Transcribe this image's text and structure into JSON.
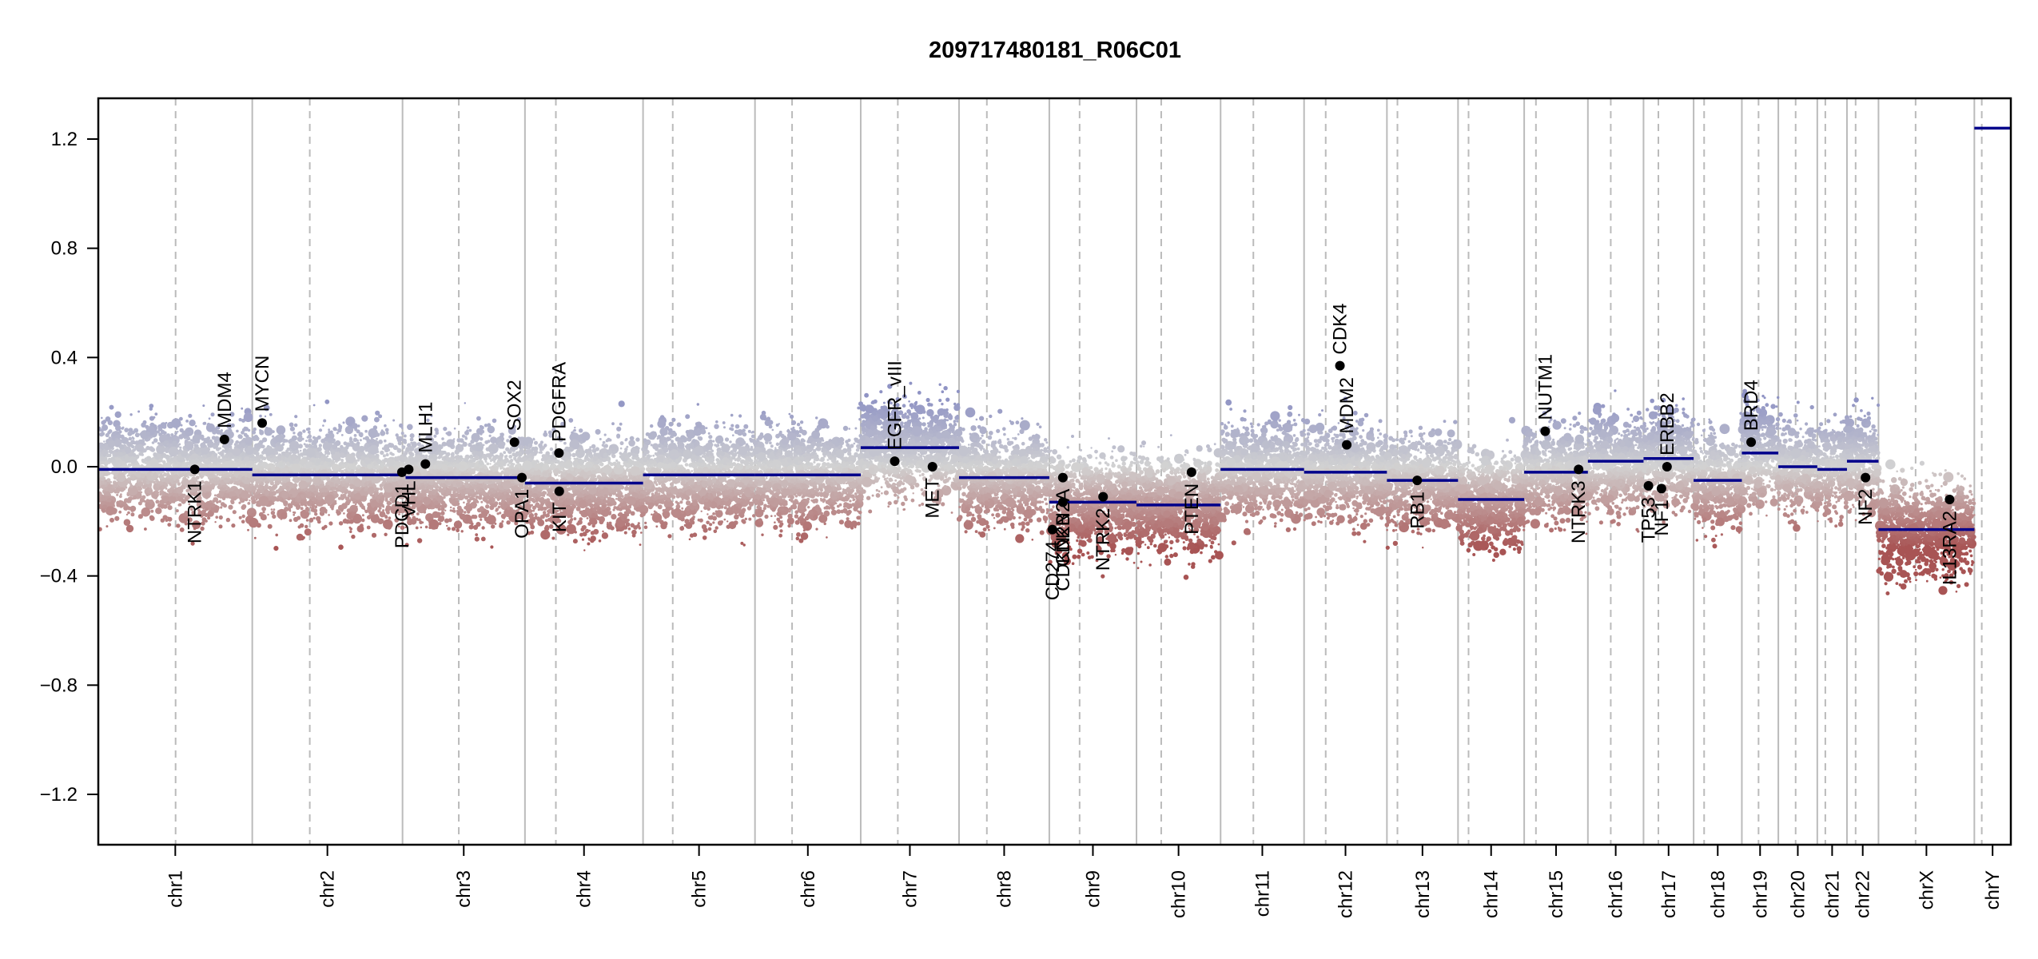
{
  "chart_data": {
    "type": "scatter",
    "title": "209717480181_R06C01",
    "xlabel": "",
    "ylabel": "",
    "ylim": [
      -1.35,
      1.35
    ],
    "yticks": [
      -1.2,
      -0.8,
      -0.4,
      0.0,
      0.4,
      0.8,
      1.2
    ],
    "ytick_labels": [
      "−1.2",
      "−0.8",
      "−0.4",
      "0.0",
      "0.4",
      "0.8",
      "1.2"
    ],
    "x_units": "Mb (cumulative genome position)",
    "grid": "chromosome boundaries (solid grey) and centromeres (dashed grey)",
    "colors": {
      "gain": "#8f93c4",
      "neutral": "#d0d0d0",
      "loss": "#b06060",
      "segment": "#00008b",
      "gene_point": "#000000",
      "boundary": "#bbbbbb",
      "centromere": "#bbbbbb"
    },
    "chromosomes": [
      {
        "name": "chr1",
        "length": 249,
        "centromere": 125
      },
      {
        "name": "chr2",
        "length": 243,
        "centromere": 93
      },
      {
        "name": "chr3",
        "length": 198,
        "centromere": 91
      },
      {
        "name": "chr4",
        "length": 191,
        "centromere": 50
      },
      {
        "name": "chr5",
        "length": 181,
        "centromere": 48
      },
      {
        "name": "chr6",
        "length": 171,
        "centromere": 60
      },
      {
        "name": "chr7",
        "length": 159,
        "centromere": 60
      },
      {
        "name": "chr8",
        "length": 146,
        "centromere": 45
      },
      {
        "name": "chr9",
        "length": 141,
        "centromere": 49
      },
      {
        "name": "chr10",
        "length": 136,
        "centromere": 40
      },
      {
        "name": "chr11",
        "length": 135,
        "centromere": 53
      },
      {
        "name": "chr12",
        "length": 134,
        "centromere": 35
      },
      {
        "name": "chr13",
        "length": 115,
        "centromere": 17
      },
      {
        "name": "chr14",
        "length": 107,
        "centromere": 17
      },
      {
        "name": "chr15",
        "length": 103,
        "centromere": 19
      },
      {
        "name": "chr16",
        "length": 90,
        "centromere": 37
      },
      {
        "name": "chr17",
        "length": 81,
        "centromere": 24
      },
      {
        "name": "chr18",
        "length": 78,
        "centromere": 17
      },
      {
        "name": "chr19",
        "length": 59,
        "centromere": 27
      },
      {
        "name": "chr20",
        "length": 63,
        "centromere": 28
      },
      {
        "name": "chr21",
        "length": 48,
        "centromere": 13
      },
      {
        "name": "chr22",
        "length": 51,
        "centromere": 14
      },
      {
        "name": "chrX",
        "length": 155,
        "centromere": 60
      },
      {
        "name": "chrY",
        "length": 59,
        "centromere": 12
      }
    ],
    "segments": [
      {
        "chr": "chr1",
        "start": 0,
        "end": 249,
        "value": -0.01
      },
      {
        "chr": "chr2",
        "start": 0,
        "end": 243,
        "value": -0.03
      },
      {
        "chr": "chr3",
        "start": 0,
        "end": 5,
        "value": -0.03
      },
      {
        "chr": "chr3",
        "start": 5,
        "end": 196,
        "value": -0.04
      },
      {
        "chr": "chr4",
        "start": 0,
        "end": 191,
        "value": -0.06
      },
      {
        "chr": "chr5",
        "start": 0,
        "end": 181,
        "value": -0.03
      },
      {
        "chr": "chr6",
        "start": 0,
        "end": 171,
        "value": -0.03
      },
      {
        "chr": "chr7",
        "start": 0,
        "end": 159,
        "value": 0.07
      },
      {
        "chr": "chr8",
        "start": 0,
        "end": 146,
        "value": -0.04
      },
      {
        "chr": "chr9",
        "start": 0,
        "end": 141,
        "value": -0.13
      },
      {
        "chr": "chr10",
        "start": 0,
        "end": 136,
        "value": -0.14
      },
      {
        "chr": "chr11",
        "start": 0,
        "end": 135,
        "value": -0.01
      },
      {
        "chr": "chr12",
        "start": 0,
        "end": 134,
        "value": -0.02
      },
      {
        "chr": "chr13",
        "start": 0,
        "end": 115,
        "value": -0.05
      },
      {
        "chr": "chr14",
        "start": 0,
        "end": 107,
        "value": -0.12
      },
      {
        "chr": "chr15",
        "start": 0,
        "end": 103,
        "value": -0.02
      },
      {
        "chr": "chr16",
        "start": 0,
        "end": 90,
        "value": 0.02
      },
      {
        "chr": "chr17",
        "start": 0,
        "end": 81,
        "value": 0.03
      },
      {
        "chr": "chr18",
        "start": 0,
        "end": 78,
        "value": -0.05
      },
      {
        "chr": "chr19",
        "start": 0,
        "end": 59,
        "value": 0.05
      },
      {
        "chr": "chr20",
        "start": 0,
        "end": 63,
        "value": 0.0
      },
      {
        "chr": "chr21",
        "start": 0,
        "end": 48,
        "value": -0.01
      },
      {
        "chr": "chr22",
        "start": 0,
        "end": 51,
        "value": 0.02
      },
      {
        "chr": "chrX",
        "start": 0,
        "end": 155,
        "value": -0.23
      },
      {
        "chr": "chrY",
        "start": 0,
        "end": 59,
        "value": 1.24
      }
    ],
    "genes": [
      {
        "name": "NTRK1",
        "chr": "chr1",
        "pos": 156,
        "value": -0.01,
        "label_side": "below"
      },
      {
        "name": "MDM4",
        "chr": "chr1",
        "pos": 204,
        "value": 0.1,
        "label_side": "above"
      },
      {
        "name": "MYCN",
        "chr": "chr2",
        "pos": 16,
        "value": 0.16,
        "label_side": "above"
      },
      {
        "name": "PDCD1",
        "chr": "chr2",
        "pos": 242,
        "value": -0.02,
        "label_side": "below"
      },
      {
        "name": "VHL",
        "chr": "chr3",
        "pos": 10,
        "value": -0.01,
        "label_side": "below"
      },
      {
        "name": "MLH1",
        "chr": "chr3",
        "pos": 37,
        "value": 0.01,
        "label_side": "above"
      },
      {
        "name": "SOX2",
        "chr": "chr3",
        "pos": 181,
        "value": 0.09,
        "label_side": "above"
      },
      {
        "name": "OPA1",
        "chr": "chr3",
        "pos": 193,
        "value": -0.04,
        "label_side": "below"
      },
      {
        "name": "PDGFRA",
        "chr": "chr4",
        "pos": 55,
        "value": 0.05,
        "label_side": "above"
      },
      {
        "name": "KIT",
        "chr": "chr4",
        "pos": 55.5,
        "value": -0.09,
        "label_side": "below"
      },
      {
        "name": "EGFR_vIII",
        "chr": "chr7",
        "pos": 55,
        "value": 0.02,
        "label_side": "above"
      },
      {
        "name": "MET",
        "chr": "chr7",
        "pos": 116,
        "value": 0.0,
        "label_side": "below"
      },
      {
        "name": "CD274",
        "chr": "chr9",
        "pos": 5,
        "value": -0.23,
        "label_side": "below"
      },
      {
        "name": "CDKN2A",
        "chr": "chr9",
        "pos": 21.9,
        "value": -0.04,
        "label_side": "below"
      },
      {
        "name": "CDKN2B",
        "chr": "chr9",
        "pos": 22,
        "value": -0.13,
        "label_side": "below"
      },
      {
        "name": "NTRK2",
        "chr": "chr9",
        "pos": 87,
        "value": -0.11,
        "label_side": "below"
      },
      {
        "name": "PTEN",
        "chr": "chr10",
        "pos": 89,
        "value": -0.02,
        "label_side": "below"
      },
      {
        "name": "CDK4",
        "chr": "chr12",
        "pos": 58,
        "value": 0.37,
        "label_side": "above"
      },
      {
        "name": "MDM2",
        "chr": "chr12",
        "pos": 69,
        "value": 0.08,
        "label_side": "above"
      },
      {
        "name": "RB1",
        "chr": "chr13",
        "pos": 49,
        "value": -0.05,
        "label_side": "below"
      },
      {
        "name": "NUTM1",
        "chr": "chr15",
        "pos": 34,
        "value": 0.13,
        "label_side": "above"
      },
      {
        "name": "NTRK3",
        "chr": "chr15",
        "pos": 88,
        "value": -0.01,
        "label_side": "below"
      },
      {
        "name": "TP53",
        "chr": "chr17",
        "pos": 8,
        "value": -0.07,
        "label_side": "below"
      },
      {
        "name": "NF1",
        "chr": "chr17",
        "pos": 29,
        "value": -0.08,
        "label_side": "below"
      },
      {
        "name": "ERBB2",
        "chr": "chr17",
        "pos": 38,
        "value": 0.0,
        "label_side": "above"
      },
      {
        "name": "BRD4",
        "chr": "chr19",
        "pos": 15,
        "value": 0.09,
        "label_side": "above"
      },
      {
        "name": "NF2",
        "chr": "chr22",
        "pos": 30,
        "value": -0.04,
        "label_side": "below"
      },
      {
        "name": "IL13RA2",
        "chr": "chrX",
        "pos": 115,
        "value": -0.12,
        "label_side": "below"
      }
    ],
    "probe_cloud": {
      "description": "dense probe-level log2 ratio scatter per chromosome, centered on segment value",
      "spread_sd": 0.12
    }
  }
}
